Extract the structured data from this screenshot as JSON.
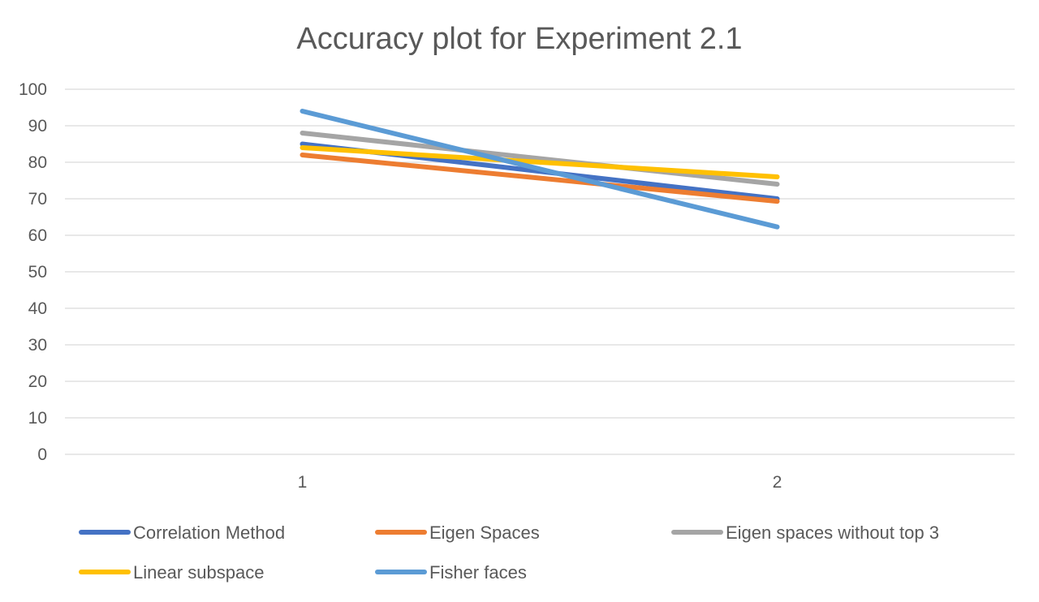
{
  "chart_data": {
    "type": "line",
    "title": "Accuracy plot for Experiment 2.1",
    "categories": [
      "1",
      "2"
    ],
    "ylim": [
      0,
      100
    ],
    "yticks": [
      0,
      10,
      20,
      30,
      40,
      50,
      60,
      70,
      80,
      90,
      100
    ],
    "grid": true,
    "legend_position": "bottom",
    "series": [
      {
        "name": "Correlation Method",
        "values": [
          85,
          70
        ],
        "color": "#4472C4"
      },
      {
        "name": "Eigen Spaces",
        "values": [
          82,
          69.3
        ],
        "color": "#ED7D31"
      },
      {
        "name": "Eigen spaces without top 3",
        "values": [
          88,
          74
        ],
        "color": "#A5A5A5"
      },
      {
        "name": "Linear subspace",
        "values": [
          84,
          76
        ],
        "color": "#FFC000"
      },
      {
        "name": "Fisher faces",
        "values": [
          94,
          62.3
        ],
        "color": "#5B9BD5"
      }
    ]
  }
}
